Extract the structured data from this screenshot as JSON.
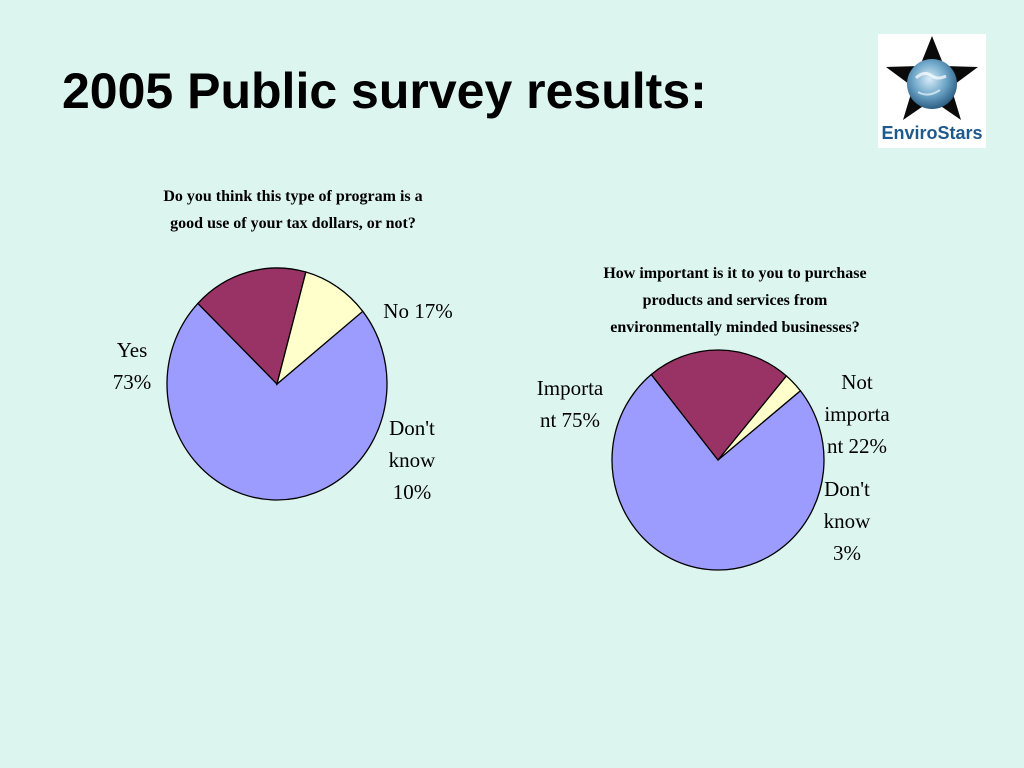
{
  "slide": {
    "title": "2005 Public survey results:"
  },
  "logo": {
    "text_part1": "Enviro",
    "text_part2": "Stars",
    "colors": {
      "star": "#0a0a0a",
      "globe": "#6fa7c9",
      "text": "#1f5a8c"
    }
  },
  "colors": {
    "background": "#ddf5ef",
    "slice_blue": "#9c9cff",
    "slice_maroon": "#993366",
    "slice_cream": "#ffffcc"
  },
  "chart_data": [
    {
      "type": "pie",
      "title": "Do you think this type of program is a good use of your tax dollars, or not?",
      "title_lines": [
        "Do you think this type of program is a",
        "good use of your tax dollars, or not?"
      ],
      "slices": [
        {
          "label": "Yes",
          "value": 73,
          "label_lines": [
            "Yes",
            "73%"
          ],
          "color": "#9c9cff"
        },
        {
          "label": "No",
          "value": 17,
          "label_lines": [
            "No 17%"
          ],
          "color": "#993366"
        },
        {
          "label": "Don't know",
          "value": 10,
          "label_lines": [
            "Don't",
            "know",
            "10%"
          ],
          "color": "#ffffcc"
        }
      ]
    },
    {
      "type": "pie",
      "title": "How important is it to you to purchase products and services from environmentally minded businesses?",
      "title_lines": [
        "How important is it to you to purchase",
        "products and services from",
        "environmentally minded businesses?"
      ],
      "slices": [
        {
          "label": "Important",
          "value": 75,
          "label_lines": [
            "Importa",
            "nt 75%"
          ],
          "color": "#9c9cff"
        },
        {
          "label": "Not important",
          "value": 22,
          "label_lines": [
            "Not",
            "importa",
            "nt 22%"
          ],
          "color": "#993366"
        },
        {
          "label": "Don't know",
          "value": 3,
          "label_lines": [
            "Don't",
            "know",
            "3%"
          ],
          "color": "#ffffcc"
        }
      ]
    }
  ]
}
